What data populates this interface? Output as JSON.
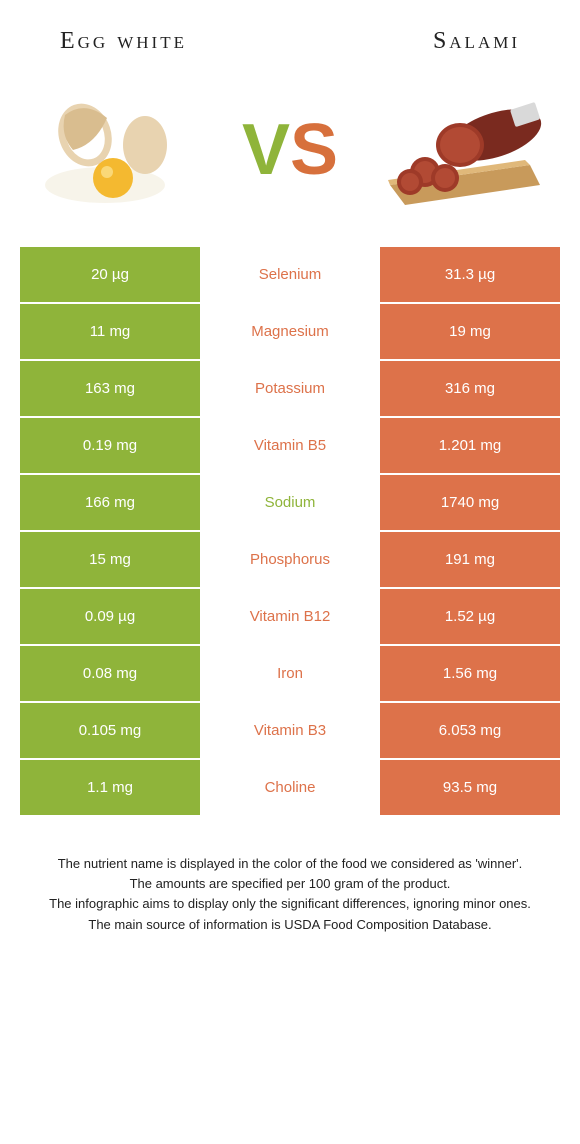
{
  "colors": {
    "green": "#8fb43a",
    "orange": "#dd724a"
  },
  "foods": {
    "left": "Egg white",
    "right": "Salami"
  },
  "vs": {
    "v": "V",
    "s": "S"
  },
  "rows": [
    {
      "left": "20 µg",
      "label": "Selenium",
      "right": "31.3 µg",
      "winner": "right"
    },
    {
      "left": "11 mg",
      "label": "Magnesium",
      "right": "19 mg",
      "winner": "right"
    },
    {
      "left": "163 mg",
      "label": "Potassium",
      "right": "316 mg",
      "winner": "right"
    },
    {
      "left": "0.19 mg",
      "label": "Vitamin B5",
      "right": "1.201 mg",
      "winner": "right"
    },
    {
      "left": "166 mg",
      "label": "Sodium",
      "right": "1740 mg",
      "winner": "left"
    },
    {
      "left": "15 mg",
      "label": "Phosphorus",
      "right": "191 mg",
      "winner": "right"
    },
    {
      "left": "0.09 µg",
      "label": "Vitamin B12",
      "right": "1.52 µg",
      "winner": "right"
    },
    {
      "left": "0.08 mg",
      "label": "Iron",
      "right": "1.56 mg",
      "winner": "right"
    },
    {
      "left": "0.105 mg",
      "label": "Vitamin B3",
      "right": "6.053 mg",
      "winner": "right"
    },
    {
      "left": "1.1 mg",
      "label": "Choline",
      "right": "93.5 mg",
      "winner": "right"
    }
  ],
  "footer": [
    "The nutrient name is displayed in the color of the food we considered as 'winner'.",
    "The amounts are specified per 100 gram of the product.",
    "The infographic aims to display only the significant differences, ignoring minor ones.",
    "The main source of information is USDA Food Composition Database."
  ]
}
